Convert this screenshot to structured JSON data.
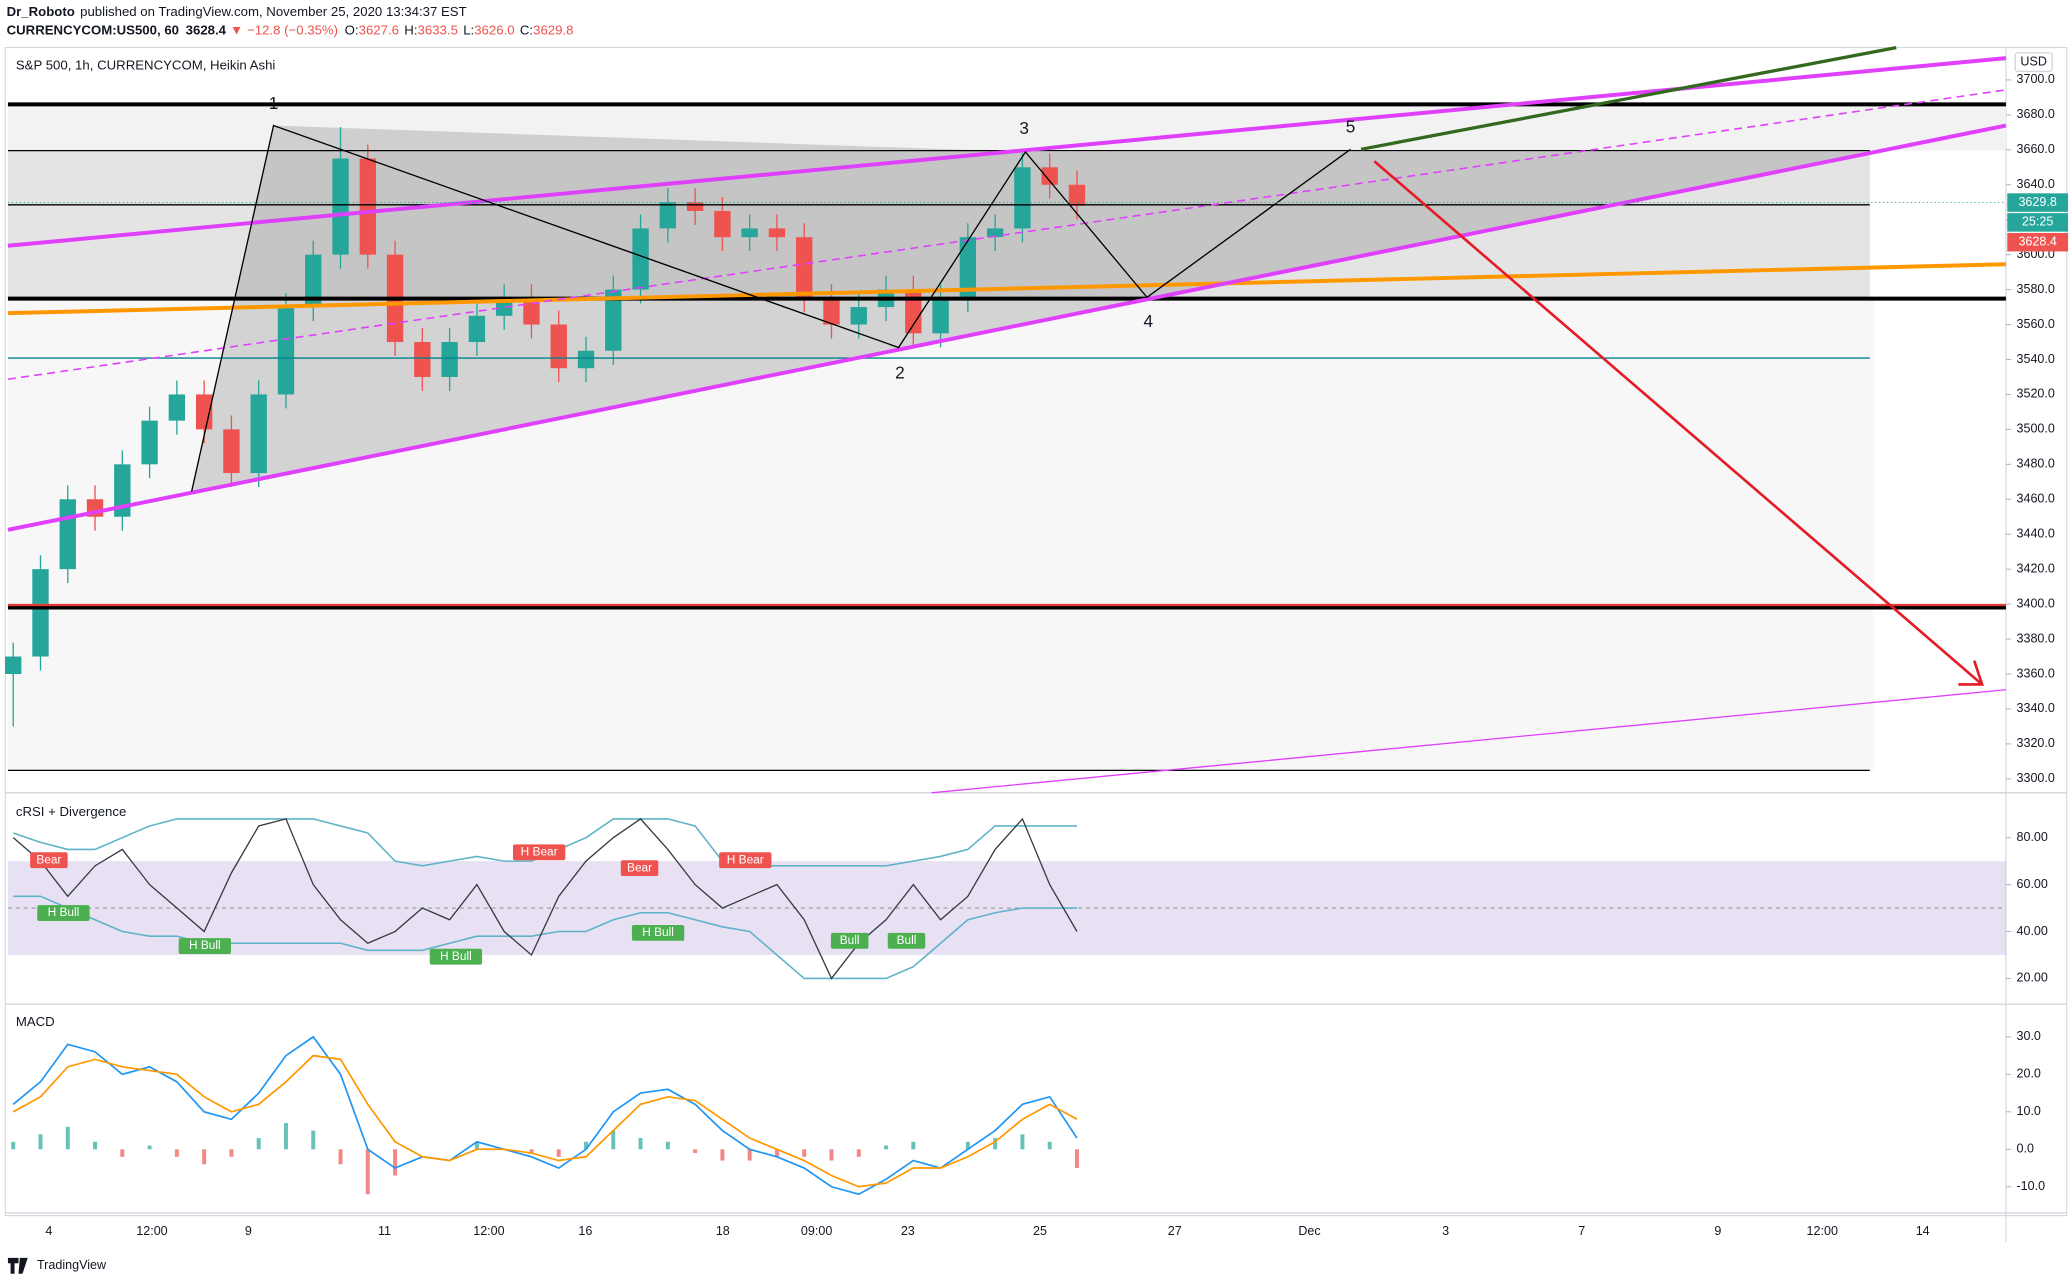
{
  "header": {
    "author": "Dr_Roboto",
    "published": "published on TradingView.com, November 25, 2020 13:34:37 EST",
    "symbol": "CURRENCYCOM:US500, 60",
    "last": "3628.4",
    "arrow": "▼",
    "change": "−12.8 (−0.35%)",
    "ohlc": [
      [
        "O:",
        "3627.6"
      ],
      [
        "H:",
        "3633.5"
      ],
      [
        "L:",
        "3626.0"
      ],
      [
        "C:",
        "3629.8"
      ]
    ]
  },
  "chart_data": [
    {
      "type": "candlestick",
      "title": "S&P 500, 1h, CURRENCYCOM, Heikin Ashi",
      "unit": "USD",
      "open": [
        3360,
        3370,
        3420,
        3460,
        3450,
        3480,
        3505,
        3520,
        3500,
        3475,
        3520,
        3570,
        3600,
        3655,
        3600,
        3550,
        3530,
        3550,
        3565,
        3575,
        3560,
        3535,
        3545,
        3580,
        3615,
        3630,
        3625,
        3610,
        3615,
        3610,
        3575,
        3560,
        3570,
        3580,
        3555,
        3575,
        3610,
        3615,
        3650,
        3640
      ],
      "high": [
        3378,
        3428,
        3468,
        3468,
        3488,
        3513,
        3528,
        3528,
        3508,
        3528,
        3578,
        3608,
        3673,
        3663,
        3608,
        3558,
        3558,
        3573,
        3583,
        3583,
        3568,
        3553,
        3588,
        3623,
        3638,
        3638,
        3633,
        3623,
        3623,
        3618,
        3583,
        3578,
        3588,
        3588,
        3583,
        3618,
        3623,
        3658,
        3658,
        3648
      ],
      "low": [
        3330,
        3362,
        3412,
        3442,
        3442,
        3472,
        3497,
        3492,
        3467,
        3467,
        3512,
        3562,
        3592,
        3592,
        3542,
        3522,
        3522,
        3542,
        3557,
        3552,
        3527,
        3527,
        3537,
        3572,
        3607,
        3617,
        3602,
        3602,
        3602,
        3567,
        3552,
        3552,
        3562,
        3547,
        3547,
        3567,
        3602,
        3607,
        3632,
        3620
      ],
      "close": [
        3370,
        3420,
        3460,
        3450,
        3480,
        3505,
        3520,
        3500,
        3475,
        3520,
        3570,
        3600,
        3655,
        3600,
        3550,
        3530,
        3550,
        3565,
        3575,
        3560,
        3535,
        3545,
        3580,
        3615,
        3630,
        3625,
        3610,
        3615,
        3610,
        3575,
        3560,
        3570,
        3580,
        3555,
        3575,
        3610,
        3615,
        3650,
        3640,
        3628
      ],
      "up_color": "#26a69a",
      "down_color": "#ef5350",
      "ylim": [
        3292,
        3717
      ],
      "yticks": [
        {
          "value": 3300,
          "label": "3300.0"
        },
        {
          "value": 3320,
          "label": "3320.0"
        },
        {
          "value": 3340,
          "label": "3340.0"
        },
        {
          "value": 3360,
          "label": "3360.0"
        },
        {
          "value": 3380,
          "label": "3380.0"
        },
        {
          "value": 3400,
          "label": "3400.0"
        },
        {
          "value": 3420,
          "label": "3420.0"
        },
        {
          "value": 3440,
          "label": "3440.0"
        },
        {
          "value": 3460,
          "label": "3460.0"
        },
        {
          "value": 3480,
          "label": "3480.0"
        },
        {
          "value": 3500,
          "label": "3500.0"
        },
        {
          "value": 3520,
          "label": "3520.0"
        },
        {
          "value": 3540,
          "label": "3540.0"
        },
        {
          "value": 3560,
          "label": "3560.0"
        },
        {
          "value": 3580,
          "label": "3580.0"
        },
        {
          "value": 3600,
          "label": "3600.0"
        },
        {
          "value": 3620,
          "label": "3620.0"
        },
        {
          "value": 3640,
          "label": "3640.0"
        },
        {
          "value": 3660,
          "label": "3660.0"
        },
        {
          "value": 3680,
          "label": "3680.0"
        },
        {
          "value": 3700,
          "label": "3700.0"
        }
      ],
      "wave_labels": [
        "1",
        "2",
        "3",
        "4",
        "5"
      ],
      "price_tags": [
        {
          "value": 3629.8,
          "color": "#26a69a"
        },
        {
          "label": "25:25",
          "color": "#26a69a"
        },
        {
          "value": 3628.4,
          "color": "#ef5350"
        }
      ]
    },
    {
      "type": "line",
      "title": "cRSI + Divergence",
      "series": [
        {
          "color": "#5fb3c9",
          "values": [
            82,
            78,
            75,
            75,
            80,
            85,
            88,
            88,
            88,
            88,
            88,
            88,
            85,
            82,
            70,
            68,
            70,
            72,
            70,
            70,
            75,
            80,
            88,
            88,
            88,
            85,
            70,
            68,
            68,
            68,
            68,
            68,
            68,
            70,
            72,
            75,
            85,
            85,
            85,
            85
          ]
        },
        {
          "color": "#5fb3c9",
          "values": [
            55,
            55,
            50,
            45,
            40,
            38,
            38,
            35,
            35,
            35,
            35,
            35,
            35,
            32,
            32,
            32,
            35,
            38,
            38,
            38,
            40,
            40,
            45,
            48,
            48,
            45,
            42,
            40,
            30,
            20,
            20,
            20,
            20,
            25,
            35,
            45,
            48,
            50,
            50,
            50
          ]
        },
        {
          "color": "#363a45",
          "values": [
            80,
            70,
            55,
            68,
            75,
            60,
            50,
            40,
            65,
            85,
            88,
            60,
            45,
            35,
            40,
            50,
            45,
            60,
            40,
            30,
            55,
            70,
            80,
            88,
            75,
            60,
            50,
            55,
            60,
            45,
            20,
            35,
            45,
            60,
            45,
            55,
            75,
            88,
            60,
            40
          ]
        }
      ],
      "zone": [
        30,
        70
      ],
      "zone_color": "#9575cd",
      "midline": 50,
      "ylim": [
        9,
        98
      ],
      "yticks": [
        {
          "value": 20,
          "label": "20.00"
        },
        {
          "value": 40,
          "label": "40.00"
        },
        {
          "value": 60,
          "label": "60.00"
        },
        {
          "value": 80,
          "label": "80.00"
        }
      ],
      "annotations": [
        {
          "text": "Bear",
          "kind": "bear"
        },
        {
          "text": "H Bull",
          "kind": "bull"
        },
        {
          "text": "H Bull",
          "kind": "bull"
        },
        {
          "text": "H Bull",
          "kind": "bull"
        },
        {
          "text": "H Bear",
          "kind": "bear"
        },
        {
          "text": "Bear",
          "kind": "bear"
        },
        {
          "text": "H Bull",
          "kind": "bull"
        },
        {
          "text": "H Bear",
          "kind": "bear"
        },
        {
          "text": "Bull",
          "kind": "bull"
        },
        {
          "text": "Bull",
          "kind": "bull"
        }
      ]
    },
    {
      "type": "macd",
      "title": "MACD",
      "series": [
        {
          "color": "#2196f3",
          "values": [
            12,
            18,
            28,
            26,
            20,
            22,
            18,
            10,
            8,
            15,
            25,
            30,
            20,
            0,
            -5,
            -2,
            -3,
            2,
            0,
            -2,
            -5,
            0,
            10,
            15,
            16,
            12,
            5,
            0,
            -2,
            -5,
            -10,
            -12,
            -8,
            -3,
            -5,
            0,
            5,
            12,
            14,
            3
          ]
        },
        {
          "color": "#ff9800",
          "values": [
            10,
            14,
            22,
            24,
            22,
            21,
            20,
            14,
            10,
            12,
            18,
            25,
            24,
            12,
            2,
            -2,
            -3,
            0,
            0,
            -1,
            -3,
            -2,
            5,
            12,
            14,
            13,
            8,
            3,
            0,
            -3,
            -7,
            -10,
            -9,
            -5,
            -5,
            -2,
            2,
            8,
            12,
            8
          ]
        }
      ],
      "histogram": {
        "values": [
          2,
          4,
          6,
          2,
          -2,
          1,
          -2,
          -4,
          -2,
          3,
          7,
          5,
          -4,
          -12,
          -7,
          0,
          0,
          2,
          0,
          -1,
          -2,
          2,
          5,
          3,
          2,
          -1,
          -3,
          -3,
          -2,
          -2,
          -3,
          -2,
          1,
          2,
          0,
          2,
          3,
          4,
          2,
          -5
        ],
        "up_color": "#26a69a",
        "down_color": "#ef5350"
      },
      "ylim": [
        -17,
        38
      ],
      "yticks": [
        {
          "value": -10,
          "label": "-10.0"
        },
        {
          "value": 0,
          "label": "0.0"
        },
        {
          "value": 10,
          "label": "10.0"
        },
        {
          "value": 20,
          "label": "20.0"
        },
        {
          "value": 30,
          "label": "30.0"
        }
      ]
    }
  ],
  "time_axis": {
    "labels": [
      "4",
      "12:00",
      "9",
      "11",
      "12:00",
      "16",
      "18",
      "09:00",
      "23",
      "25",
      "27",
      "Dec",
      "3",
      "7",
      "9",
      "12:00",
      "14"
    ]
  },
  "footer": {
    "brand": "TradingView"
  }
}
